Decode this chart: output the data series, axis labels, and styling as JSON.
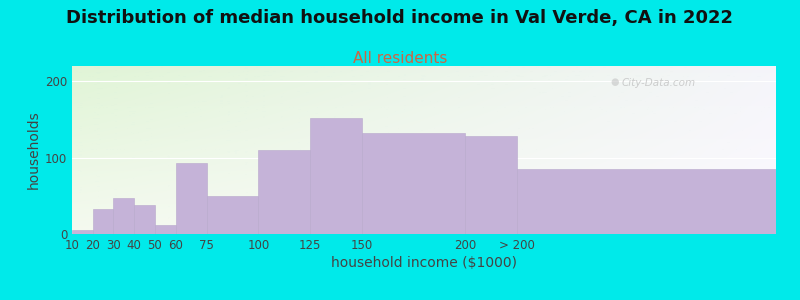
{
  "title": "Distribution of median household income in Val Verde, CA in 2022",
  "subtitle": "All residents",
  "xlabel": "household income ($1000)",
  "ylabel": "households",
  "background_outer": "#00eaea",
  "bar_color": "#c5b3d8",
  "bar_edge_color": "#b8a8cc",
  "watermark": "City-Data.com",
  "bin_edges": [
    10,
    20,
    30,
    40,
    50,
    60,
    75,
    100,
    125,
    150,
    200,
    225,
    350
  ],
  "bin_labels": [
    "10",
    "20",
    "30",
    "40",
    "50",
    "60",
    "75",
    "100",
    "125",
    "150",
    "200",
    "> 200"
  ],
  "values": [
    5,
    33,
    47,
    38,
    12,
    93,
    50,
    110,
    152,
    132,
    128,
    85
  ],
  "ylim": [
    0,
    220
  ],
  "yticks": [
    0,
    100,
    200
  ],
  "title_fontsize": 13,
  "subtitle_fontsize": 11,
  "axis_label_fontsize": 10,
  "tick_fontsize": 8.5,
  "gradient_topleft": [
    0.88,
    0.96,
    0.84,
    1.0
  ],
  "gradient_topright": [
    0.96,
    0.96,
    0.98,
    1.0
  ],
  "gradient_bottomleft": [
    0.96,
    0.98,
    0.94,
    1.0
  ],
  "gradient_bottomright": [
    0.99,
    0.98,
    1.0,
    1.0
  ]
}
